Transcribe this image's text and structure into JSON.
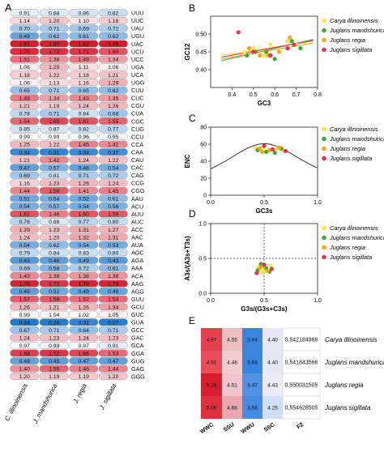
{
  "panel_labels": {
    "a": "A",
    "b": "B",
    "c": "C",
    "d": "D",
    "e": "E"
  },
  "legend": [
    "Carya illinoinensis",
    "Juglans mandshurica",
    "Juglans regia",
    "Juglans sigillata"
  ],
  "colors": {
    "carya": "#f5e84a",
    "mandshurica": "#3aaa35",
    "regia": "#f5a623",
    "sigillata": "#e8334a"
  },
  "heatmap_a": {
    "type": "heatmap",
    "species": [
      "C. illinoinensis",
      "J. mandshurica",
      "J. regia",
      "J. sigillata"
    ],
    "codons": [
      "UUU",
      "UUC",
      "UAU",
      "UGU",
      "UAC",
      "UCU",
      "UCC",
      "UGA",
      "UCA",
      "UGG",
      "CUU",
      "CUC",
      "CGU",
      "CUA",
      "CGC",
      "CUG",
      "CCU",
      "CCA",
      "CAA",
      "CAU",
      "CAC",
      "CAG",
      "CCG",
      "CGG",
      "AAU",
      "ACU",
      "AUU",
      "AUC",
      "ACC",
      "AAC",
      "AUA",
      "AGC",
      "AGA",
      "AAA",
      "ACA",
      "AAG",
      "AGG",
      "GUU",
      "GCU",
      "GUC",
      "GUA",
      "GCC",
      "GAC",
      "GCA",
      "GGA",
      "GUG",
      "GAG",
      "GGG"
    ],
    "values": [
      [
        "0.91",
        "0.88",
        "0.86",
        "0.82"
      ],
      [
        "1.14",
        "1.20",
        "1.10",
        "1.18"
      ],
      [
        "0.70",
        "0.71",
        "0.69",
        "0.72"
      ],
      [
        "0.49",
        "0.62",
        "0.61",
        "0.62"
      ],
      [
        "1.81",
        "1.80",
        "1.82",
        "1.85"
      ],
      [
        "1.75",
        "1.72",
        "1.71",
        "1.60"
      ],
      [
        "1.51",
        "1.38",
        "1.49",
        "1.34"
      ],
      [
        "1.06",
        "1.25",
        "1.11",
        "1.06"
      ],
      [
        "1.18",
        "1.22",
        "1.18",
        "1.21"
      ],
      [
        "1.06",
        "1.13",
        "1.16",
        "1.29"
      ],
      [
        "0.65",
        "0.71",
        "0.65",
        "0.62"
      ],
      [
        "1.48",
        "1.34",
        "1.43",
        "1.35"
      ],
      [
        "1.21",
        "1.19",
        "1.24",
        "1.26"
      ],
      [
        "0.78",
        "0.71",
        "0.84",
        "0.68"
      ],
      [
        "1.54",
        "1.65",
        "1.61",
        "1.55"
      ],
      [
        "0.85",
        "0.87",
        "0.82",
        "0.77"
      ],
      [
        "0.99",
        "0.99",
        "0.96",
        "0.95"
      ],
      [
        "1.25",
        "1.22",
        "1.45",
        "1.42"
      ],
      [
        "0.34",
        "0.31",
        "0.34",
        "0.37"
      ],
      [
        "1.21",
        "1.42",
        "1.24",
        "1.22"
      ],
      [
        "0.47",
        "0.57",
        "0.48",
        "0.54"
      ],
      [
        "0.69",
        "0.81",
        "0.71",
        "0.72"
      ],
      [
        "1.16",
        "1.23",
        "1.26",
        "1.24"
      ],
      [
        "1.44",
        "1.58",
        "1.41",
        "1.45"
      ],
      [
        "0.51",
        "0.54",
        "0.52",
        "0.61"
      ],
      [
        "0.54",
        "0.57",
        "0.54",
        "0.56"
      ],
      [
        "1.61",
        "1.46",
        "1.60",
        "1.59"
      ],
      [
        "0.76",
        "0.88",
        "0.77",
        "0.80"
      ],
      [
        "1.29",
        "1.23",
        "1.31",
        "1.27"
      ],
      [
        "1.24",
        "1.20",
        "1.32",
        "1.31"
      ],
      [
        "0.54",
        "0.62",
        "0.54",
        "0.53"
      ],
      [
        "0.79",
        "0.84",
        "0.83",
        "0.80"
      ],
      [
        "0.43",
        "0.46",
        "0.49",
        "0.43"
      ],
      [
        "0.69",
        "0.58",
        "0.72",
        "0.61"
      ],
      [
        "1.43",
        "1.38",
        "1.38",
        "1.38"
      ],
      [
        "1.78",
        "1.72",
        "1.78",
        "1.78"
      ],
      [
        "0.46",
        "0.52",
        "0.49",
        "0.49"
      ],
      [
        "1.57",
        "1.58",
        "1.52",
        "1.54"
      ],
      [
        "1.26",
        "1.21",
        "1.26",
        "1.34"
      ],
      [
        "0.99",
        "1.04",
        "1.02",
        "1.05"
      ],
      [
        "0.24",
        "0.26",
        "0.31",
        "0.27"
      ],
      [
        "0.67",
        "0.71",
        "0.64",
        "0.71"
      ],
      [
        "1.24",
        "1.23",
        "1.24",
        "1.23"
      ],
      [
        "0.97",
        "0.93",
        "0.97",
        "0.91"
      ],
      [
        "1.68",
        "1.72",
        "1.66",
        "1.53"
      ],
      [
        "0.48",
        "0.45",
        "0.47",
        "0.47"
      ],
      [
        "1.40",
        "1.55",
        "1.46",
        "1.44"
      ],
      [
        "1.20",
        "1.19",
        "1.19",
        "1.20"
      ]
    ]
  },
  "chart_data": [
    {
      "type": "scatter",
      "panel": "B",
      "xlabel": "GC3",
      "ylabel": "GC12",
      "xlim": [
        0.3,
        0.8
      ],
      "ylim": [
        0.35,
        0.55
      ],
      "xticks": [
        "0.4",
        "0.5",
        "0.6",
        "0.7",
        "0.8"
      ],
      "yticks": [
        "0.40",
        "0.45",
        "0.50"
      ],
      "series": [
        {
          "name": "Carya illinoinensis",
          "points": [
            [
              0.46,
              0.45
            ],
            [
              0.5,
              0.46
            ],
            [
              0.58,
              0.47
            ],
            [
              0.66,
              0.48
            ],
            [
              0.7,
              0.47
            ],
            [
              0.55,
              0.44
            ]
          ],
          "fit": [
            [
              0.35,
              0.44
            ],
            [
              0.78,
              0.48
            ]
          ]
        },
        {
          "name": "Juglans mandshurica",
          "points": [
            [
              0.47,
              0.44
            ],
            [
              0.51,
              0.45
            ],
            [
              0.56,
              0.45
            ],
            [
              0.6,
              0.43
            ],
            [
              0.68,
              0.48
            ],
            [
              0.72,
              0.46
            ]
          ],
          "fit": [
            [
              0.35,
              0.425
            ],
            [
              0.78,
              0.485
            ]
          ]
        },
        {
          "name": "Juglans regia",
          "points": [
            [
              0.48,
              0.46
            ],
            [
              0.53,
              0.44
            ],
            [
              0.62,
              0.45
            ],
            [
              0.67,
              0.49
            ],
            [
              0.57,
              0.44
            ]
          ],
          "fit": [
            [
              0.35,
              0.43
            ],
            [
              0.78,
              0.475
            ]
          ]
        },
        {
          "name": "Juglans sigillata",
          "points": [
            [
              0.43,
              0.505
            ],
            [
              0.5,
              0.45
            ],
            [
              0.58,
              0.44
            ],
            [
              0.66,
              0.46
            ],
            [
              0.69,
              0.47
            ]
          ],
          "fit": [
            [
              0.35,
              0.435
            ],
            [
              0.78,
              0.482
            ]
          ]
        }
      ]
    },
    {
      "type": "scatter",
      "panel": "C",
      "xlabel": "GC3s",
      "ylabel": "ENC",
      "xlim": [
        0,
        1
      ],
      "ylim": [
        0,
        80
      ],
      "xticks": [
        "0.0",
        "0.5",
        "1.0"
      ],
      "yticks": [
        "0",
        "20",
        "40",
        "60",
        "80"
      ],
      "series": [
        {
          "name": "Carya illinoinensis",
          "points": [
            [
              0.42,
              56
            ],
            [
              0.5,
              52
            ],
            [
              0.62,
              55
            ],
            [
              0.68,
              53
            ]
          ]
        },
        {
          "name": "Juglans mandshurica",
          "points": [
            [
              0.44,
              53
            ],
            [
              0.52,
              51
            ],
            [
              0.6,
              50
            ],
            [
              0.66,
              55
            ]
          ]
        },
        {
          "name": "Juglans regia",
          "points": [
            [
              0.46,
              55
            ],
            [
              0.55,
              53
            ],
            [
              0.64,
              56
            ],
            [
              0.48,
              51
            ]
          ]
        },
        {
          "name": "Juglans sigillata",
          "points": [
            [
              0.5,
              58
            ],
            [
              0.58,
              54
            ],
            [
              0.7,
              52
            ]
          ]
        }
      ]
    },
    {
      "type": "scatter",
      "panel": "D",
      "xlabel": "G3s/(G3s+C3s)",
      "ylabel": "A3s/(A3s+T3s)",
      "xlim": [
        0,
        1
      ],
      "ylim": [
        0,
        1
      ],
      "xticks": [
        "0.0",
        "0.5",
        "1.0"
      ],
      "yticks": [
        "0.0",
        "0.5",
        "1.0"
      ],
      "series": [
        {
          "name": "Carya illinoinensis",
          "points": [
            [
              0.45,
              0.38
            ],
            [
              0.5,
              0.34
            ],
            [
              0.56,
              0.4
            ],
            [
              0.48,
              0.3
            ]
          ]
        },
        {
          "name": "Juglans mandshurica",
          "points": [
            [
              0.47,
              0.42
            ],
            [
              0.52,
              0.36
            ],
            [
              0.44,
              0.33
            ],
            [
              0.55,
              0.31
            ]
          ]
        },
        {
          "name": "Juglans regia",
          "points": [
            [
              0.49,
              0.39
            ],
            [
              0.53,
              0.32
            ],
            [
              0.46,
              0.36
            ]
          ]
        },
        {
          "name": "Juglans sigillata",
          "points": [
            [
              0.5,
              0.41
            ],
            [
              0.57,
              0.35
            ],
            [
              0.43,
              0.29
            ]
          ]
        }
      ]
    },
    {
      "type": "table",
      "panel": "E",
      "columns": [
        "WWC",
        "SSU",
        "WWU",
        "SSC",
        "F2"
      ],
      "rows": [
        {
          "species": "Carya illinoinensis",
          "values": [
            "4.97",
            "4.55",
            "3.64",
            "4.40",
            "0.542184966"
          ]
        },
        {
          "species": "Juglans mandshurica",
          "values": [
            "4.91",
            "4.48",
            "3.66",
            "4.40",
            "0.541843566"
          ]
        },
        {
          "species": "Juglans regia",
          "values": [
            "5.16",
            "4.51",
            "3.47",
            "4.43",
            "0.550031505"
          ]
        },
        {
          "species": "Juglans sigillata",
          "values": [
            "5.06",
            "4.66",
            "3.56",
            "4.25",
            "0.554628505"
          ]
        }
      ]
    }
  ]
}
